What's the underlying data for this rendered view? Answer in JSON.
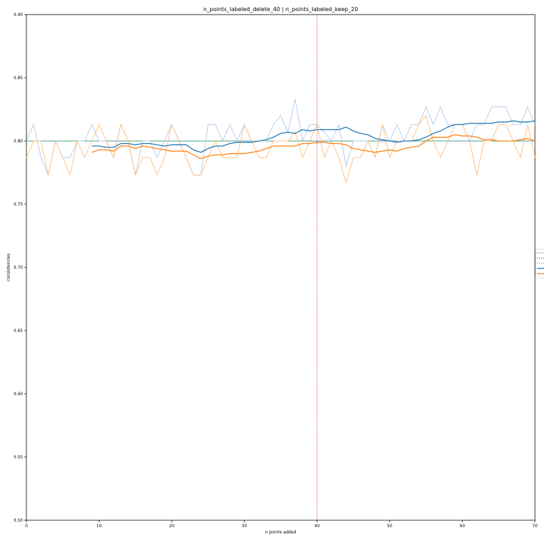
{
  "chart_data": {
    "type": "line",
    "title": "n_points_labeled_delete_40 | n_points_labeled_keep_20",
    "xlabel": "n points added",
    "ylabel": "consistencies",
    "xlim": [
      0,
      70
    ],
    "ylim": [
      0.5,
      0.9
    ],
    "x_ticks": [
      "0",
      "10",
      "20",
      "30",
      "40",
      "50",
      "60",
      "70"
    ],
    "y_ticks": [
      "0.50",
      "0.55",
      "0.60",
      "0.65",
      "0.70",
      "0.75",
      "0.80",
      "0.85",
      "0.90"
    ],
    "grid": false,
    "legend": "right",
    "vline": {
      "x": 40,
      "color": "#d62728",
      "style": "dotted"
    },
    "hlines": [
      {
        "y": 0.8,
        "color": "#1f77b4",
        "style": "dotted"
      },
      {
        "y": 0.8,
        "color": "#2ca02c",
        "style": "dotted"
      }
    ],
    "series": [
      {
        "color": "#aec7e8",
        "kind": "raw",
        "x": [
          0,
          1,
          2,
          3,
          4,
          5,
          6,
          7,
          8,
          9,
          10,
          11,
          12,
          13,
          14,
          15,
          16,
          17,
          18,
          19,
          20,
          21,
          22,
          23,
          24,
          25,
          26,
          27,
          28,
          29,
          30,
          31,
          32,
          33,
          34,
          35,
          36,
          37,
          38,
          39,
          40,
          41,
          42,
          43,
          44,
          45,
          46,
          47,
          48,
          49,
          50,
          51,
          52,
          53,
          54,
          55,
          56,
          57,
          58,
          59,
          60,
          61,
          62,
          63,
          64,
          65,
          66,
          67,
          68,
          69,
          70
        ],
        "values": [
          0.8,
          0.813,
          0.787,
          0.773,
          0.8,
          0.787,
          0.787,
          0.8,
          0.8,
          0.813,
          0.8,
          0.8,
          0.787,
          0.813,
          0.8,
          0.773,
          0.8,
          0.8,
          0.787,
          0.8,
          0.813,
          0.8,
          0.787,
          0.773,
          0.773,
          0.813,
          0.813,
          0.8,
          0.813,
          0.8,
          0.813,
          0.8,
          0.8,
          0.8,
          0.813,
          0.82,
          0.807,
          0.833,
          0.8,
          0.813,
          0.813,
          0.807,
          0.8,
          0.813,
          0.78,
          0.8,
          0.8,
          0.8,
          0.787,
          0.813,
          0.8,
          0.813,
          0.8,
          0.813,
          0.813,
          0.827,
          0.813,
          0.827,
          0.813,
          0.813,
          0.813,
          0.8,
          0.813,
          0.813,
          0.827,
          0.827,
          0.827,
          0.813,
          0.813,
          0.827,
          0.813
        ]
      },
      {
        "color": "#ffbb78",
        "kind": "raw",
        "x": [
          0,
          1,
          2,
          3,
          4,
          5,
          6,
          7,
          8,
          9,
          10,
          11,
          12,
          13,
          14,
          15,
          16,
          17,
          18,
          19,
          20,
          21,
          22,
          23,
          24,
          25,
          26,
          27,
          28,
          29,
          30,
          31,
          32,
          33,
          34,
          35,
          36,
          37,
          38,
          39,
          40,
          41,
          42,
          43,
          44,
          45,
          46,
          47,
          48,
          49,
          50,
          51,
          52,
          53,
          54,
          55,
          56,
          57,
          58,
          59,
          60,
          61,
          62,
          63,
          64,
          65,
          66,
          67,
          68,
          69,
          70
        ],
        "values": [
          0.787,
          0.8,
          0.8,
          0.773,
          0.8,
          0.787,
          0.773,
          0.8,
          0.787,
          0.8,
          0.813,
          0.8,
          0.787,
          0.813,
          0.8,
          0.773,
          0.787,
          0.787,
          0.773,
          0.787,
          0.813,
          0.8,
          0.787,
          0.773,
          0.773,
          0.787,
          0.8,
          0.787,
          0.787,
          0.787,
          0.813,
          0.8,
          0.787,
          0.787,
          0.8,
          0.8,
          0.8,
          0.807,
          0.787,
          0.8,
          0.813,
          0.787,
          0.8,
          0.787,
          0.767,
          0.787,
          0.787,
          0.8,
          0.787,
          0.813,
          0.787,
          0.8,
          0.8,
          0.8,
          0.813,
          0.82,
          0.8,
          0.787,
          0.8,
          0.813,
          0.813,
          0.8,
          0.773,
          0.8,
          0.8,
          0.813,
          0.813,
          0.8,
          0.787,
          0.813,
          0.787
        ]
      },
      {
        "color": "#1f77b4",
        "kind": "smoothed",
        "x": [
          9,
          10,
          11,
          12,
          13,
          14,
          15,
          16,
          17,
          18,
          19,
          20,
          21,
          22,
          23,
          24,
          25,
          26,
          27,
          28,
          29,
          30,
          31,
          32,
          33,
          34,
          35,
          36,
          37,
          38,
          39,
          40,
          41,
          42,
          43,
          44,
          45,
          46,
          47,
          48,
          49,
          50,
          51,
          52,
          53,
          54,
          55,
          56,
          57,
          58,
          59,
          60,
          61,
          62,
          63,
          64,
          65,
          66,
          67,
          68,
          69,
          70
        ],
        "values": [
          0.796,
          0.796,
          0.795,
          0.795,
          0.798,
          0.798,
          0.797,
          0.798,
          0.798,
          0.797,
          0.796,
          0.797,
          0.797,
          0.797,
          0.793,
          0.791,
          0.794,
          0.796,
          0.796,
          0.798,
          0.799,
          0.799,
          0.799,
          0.8,
          0.801,
          0.803,
          0.806,
          0.807,
          0.806,
          0.809,
          0.808,
          0.809,
          0.809,
          0.809,
          0.809,
          0.811,
          0.808,
          0.806,
          0.805,
          0.802,
          0.801,
          0.8,
          0.799,
          0.8,
          0.8,
          0.801,
          0.803,
          0.806,
          0.808,
          0.811,
          0.813,
          0.813,
          0.814,
          0.814,
          0.814,
          0.814,
          0.815,
          0.815,
          0.816,
          0.815,
          0.815,
          0.816
        ]
      },
      {
        "color": "#ff7f0e",
        "kind": "smoothed",
        "x": [
          9,
          10,
          11,
          12,
          13,
          14,
          15,
          16,
          17,
          18,
          19,
          20,
          21,
          22,
          23,
          24,
          25,
          26,
          27,
          28,
          29,
          30,
          31,
          32,
          33,
          34,
          35,
          36,
          37,
          38,
          39,
          40,
          41,
          42,
          43,
          44,
          45,
          46,
          47,
          48,
          49,
          50,
          51,
          52,
          53,
          54,
          55,
          56,
          57,
          58,
          59,
          60,
          61,
          62,
          63,
          64,
          65,
          66,
          67,
          68,
          69,
          70
        ],
        "values": [
          0.791,
          0.793,
          0.793,
          0.792,
          0.796,
          0.796,
          0.794,
          0.796,
          0.795,
          0.794,
          0.793,
          0.792,
          0.792,
          0.792,
          0.789,
          0.786,
          0.788,
          0.789,
          0.789,
          0.79,
          0.79,
          0.79,
          0.791,
          0.792,
          0.794,
          0.796,
          0.796,
          0.796,
          0.796,
          0.798,
          0.798,
          0.799,
          0.799,
          0.798,
          0.798,
          0.797,
          0.794,
          0.793,
          0.792,
          0.791,
          0.792,
          0.793,
          0.792,
          0.794,
          0.795,
          0.796,
          0.8,
          0.803,
          0.803,
          0.803,
          0.805,
          0.804,
          0.804,
          0.803,
          0.801,
          0.801,
          0.8,
          0.8,
          0.8,
          0.801,
          0.802,
          0.8
        ]
      }
    ]
  }
}
